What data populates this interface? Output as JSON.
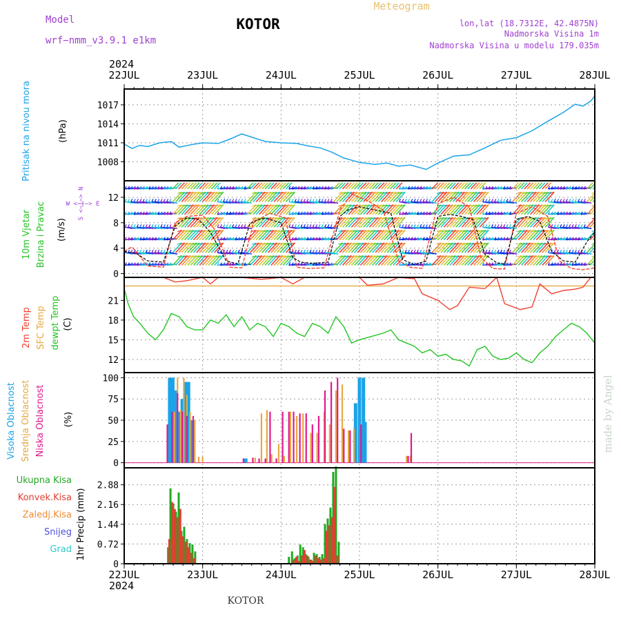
{
  "header": {
    "model_label": "Model",
    "model_name": "wrf−nmm_v3.9.1  e1km",
    "station": "KOTOR",
    "meteogram": "Meteogram",
    "lonlat": "lon,lat (18.7312E, 42.4875N)",
    "elevation": "Nadmorska Visina 1m",
    "model_elevation": "Nadmorska Visina u modelu 179.035m",
    "year_top": "2024",
    "year_bottom": "2024",
    "footer_station": "KOTOR",
    "watermark": "made by Angel"
  },
  "colors": {
    "pressure": "#1aa3e8",
    "temp2m": "#f04030",
    "sfc": "#e6a840",
    "dewpt": "#22c422",
    "high_cloud": "#1aa3e8",
    "mid_cloud": "#e6a840",
    "low_cloud": "#e0188c",
    "precip_total": "#22a822",
    "precip_conv": "#e04030",
    "precip_frozen": "#f08a30",
    "precip_snow": "#5050e0",
    "precip_hail": "#30c8c8",
    "wind_label": "#a040d0",
    "model_text": "#a040d0",
    "meteogram_text": "#e8c070"
  },
  "chart_data": [
    {
      "type": "line",
      "name": "pressure",
      "ylabel": "Pritisak na nivou mora",
      "unit": "(hPa)",
      "ylim": [
        1005,
        1019.5
      ],
      "yticks": [
        1008,
        1011,
        1014,
        1017
      ],
      "xlim": [
        0,
        6
      ],
      "x_tick_labels": [
        "22JUL",
        "23JUL",
        "24JUL",
        "25JUL",
        "26JUL",
        "27JUL",
        "28JUL"
      ],
      "grid": true,
      "series": [
        {
          "x": [
            0,
            0.1,
            0.2,
            0.3,
            0.45,
            0.6,
            0.7,
            0.85,
            1.0,
            1.2,
            1.35,
            1.5,
            1.65,
            1.8,
            2.0,
            2.2,
            2.35,
            2.5,
            2.65,
            2.8,
            3.0,
            3.2,
            3.35,
            3.5,
            3.65,
            3.85,
            4.0,
            4.2,
            4.4,
            4.6,
            4.8,
            5.0,
            5.2,
            5.4,
            5.6,
            5.75,
            5.85,
            5.95,
            6.0
          ],
          "y": [
            1010.8,
            1010.1,
            1010.6,
            1010.4,
            1011.0,
            1011.2,
            1010.3,
            1010.7,
            1011.0,
            1010.9,
            1011.6,
            1012.4,
            1011.8,
            1011.2,
            1011.0,
            1010.9,
            1010.5,
            1010.2,
            1009.5,
            1008.6,
            1007.9,
            1007.6,
            1007.8,
            1007.3,
            1007.5,
            1006.8,
            1007.8,
            1008.9,
            1009.1,
            1010.2,
            1011.4,
            1011.8,
            1012.9,
            1014.4,
            1015.8,
            1017.1,
            1016.8,
            1017.6,
            1018.4
          ]
        }
      ]
    },
    {
      "type": "line",
      "name": "wind",
      "title": "10m Vjetar",
      "ylabel": "Brzina i Pravac",
      "unit": "(m/s)",
      "compass": "W <−|−> E",
      "ylim": [
        -0.6,
        14.6
      ],
      "yticks": [
        0,
        4,
        8,
        12
      ],
      "xlim": [
        0,
        6
      ],
      "grid": true,
      "series": [
        {
          "name": "speed",
          "color": "#000000",
          "x": [
            0,
            0.15,
            0.3,
            0.5,
            0.65,
            0.8,
            0.95,
            1.1,
            1.3,
            1.45,
            1.6,
            1.7,
            1.8,
            2.0,
            2.15,
            2.25,
            2.4,
            2.6,
            2.75,
            2.85,
            3.0,
            3.2,
            3.4,
            3.55,
            3.7,
            3.85,
            4.0,
            4.15,
            4.3,
            4.45,
            4.6,
            4.75,
            4.85,
            5.0,
            5.15,
            5.3,
            5.45,
            5.6,
            5.75,
            5.9,
            6.0
          ],
          "y": [
            3.5,
            3.2,
            2.0,
            1.8,
            7.5,
            8.8,
            8.5,
            6.5,
            2.0,
            1.5,
            7.8,
            8.5,
            8.7,
            8.0,
            2.5,
            1.8,
            1.6,
            1.8,
            9.0,
            10.0,
            10.5,
            10.0,
            9.5,
            2.2,
            1.4,
            2.0,
            9.0,
            9.3,
            9.0,
            8.5,
            3.0,
            1.7,
            1.5,
            8.5,
            9.0,
            8.2,
            3.5,
            2.0,
            1.8,
            5.0,
            6.5
          ]
        },
        {
          "name": "gust",
          "color": "#f04030",
          "x": [
            0,
            0.1,
            0.3,
            0.5,
            0.65,
            0.8,
            1.0,
            1.15,
            1.35,
            1.5,
            1.65,
            1.85,
            2.05,
            2.2,
            2.35,
            2.55,
            2.75,
            2.9,
            3.1,
            3.3,
            3.5,
            3.65,
            3.8,
            4.0,
            4.2,
            4.4,
            4.55,
            4.7,
            4.85,
            5.0,
            5.2,
            5.4,
            5.55,
            5.7,
            5.85,
            6.0
          ],
          "y": [
            3.5,
            4.2,
            1.2,
            1.0,
            8.0,
            9.0,
            9.2,
            7.0,
            1.0,
            0.9,
            8.0,
            9.5,
            8.8,
            1.0,
            0.8,
            0.9,
            10.0,
            12.5,
            11.5,
            10.0,
            2.0,
            1.0,
            0.8,
            11.0,
            12.0,
            10.5,
            2.5,
            0.8,
            0.7,
            9.5,
            10.5,
            9.0,
            2.0,
            0.8,
            0.6,
            0.9
          ]
        }
      ]
    },
    {
      "type": "line",
      "name": "temperature",
      "ylabels": [
        "2m Temp",
        "SFC Temp",
        "dewpt Temp"
      ],
      "unit": "(C)",
      "ylim": [
        10,
        24.5
      ],
      "yticks": [
        12,
        15,
        18,
        21
      ],
      "xlim": [
        0,
        6
      ],
      "grid": true,
      "series": [
        {
          "name": "2m Temp",
          "x": [
            0.5,
            0.65,
            0.8,
            1.0,
            1.1,
            1.2,
            1.5,
            1.75,
            2.0,
            2.15,
            2.3,
            2.5,
            3.0,
            3.1,
            3.3,
            3.5,
            3.7,
            3.8,
            4.0,
            4.15,
            4.25,
            4.4,
            4.6,
            4.75,
            4.85,
            5.05,
            5.2,
            5.3,
            5.45,
            5.6,
            5.75,
            5.85,
            5.95
          ],
          "y": [
            24.5,
            23.8,
            24.0,
            24.5,
            23.5,
            24.5,
            24.5,
            24.2,
            24.5,
            23.5,
            24.5,
            24.5,
            24.5,
            23.3,
            23.5,
            24.5,
            24.3,
            22.0,
            21.0,
            19.6,
            20.2,
            23.0,
            22.8,
            24.5,
            20.5,
            19.6,
            20.0,
            23.5,
            22.0,
            22.5,
            22.7,
            23.0,
            24.5
          ]
        },
        {
          "name": "SFC Temp",
          "x": [
            0,
            6
          ],
          "y": [
            23.2,
            23.2
          ]
        },
        {
          "name": "dewpt Temp",
          "x": [
            0,
            0.05,
            0.12,
            0.2,
            0.3,
            0.4,
            0.5,
            0.6,
            0.7,
            0.8,
            0.9,
            1.0,
            1.1,
            1.2,
            1.3,
            1.4,
            1.5,
            1.6,
            1.7,
            1.8,
            1.9,
            2.0,
            2.1,
            2.2,
            2.3,
            2.4,
            2.5,
            2.6,
            2.7,
            2.8,
            2.9,
            3.0,
            3.15,
            3.3,
            3.4,
            3.5,
            3.6,
            3.7,
            3.8,
            3.9,
            4.0,
            4.1,
            4.2,
            4.3,
            4.4,
            4.5,
            4.6,
            4.7,
            4.8,
            4.9,
            5.0,
            5.1,
            5.2,
            5.3,
            5.4,
            5.5,
            5.6,
            5.7,
            5.8,
            5.9,
            6.0
          ],
          "y": [
            22.8,
            20.5,
            18.5,
            17.5,
            16.0,
            15.0,
            16.5,
            19.0,
            18.5,
            17.0,
            16.5,
            16.5,
            18.0,
            17.5,
            18.8,
            17.0,
            18.5,
            16.5,
            17.5,
            17.0,
            15.5,
            17.5,
            17.0,
            16.0,
            15.5,
            17.5,
            17.0,
            16.0,
            18.5,
            17.0,
            14.5,
            15.0,
            15.5,
            16.0,
            16.5,
            15.0,
            14.5,
            14.0,
            13.0,
            13.5,
            12.5,
            12.8,
            12.0,
            11.8,
            11.0,
            13.5,
            14.0,
            12.5,
            12.0,
            12.2,
            13.0,
            12.0,
            11.5,
            13.0,
            14.0,
            15.5,
            16.5,
            17.5,
            17.0,
            16.0,
            14.5
          ]
        }
      ]
    },
    {
      "type": "bar",
      "name": "cloud_cover",
      "ylabels": [
        "Visoka Oblacnost",
        "Srednja Oblacnost",
        "Niska Oblacnost"
      ],
      "unit": "(%)",
      "ylim": [
        -6,
        106
      ],
      "yticks": [
        0,
        25,
        50,
        75,
        100
      ],
      "xlim": [
        0,
        6
      ],
      "grid": true,
      "series": [
        {
          "name": "Visoka Oblacnost",
          "x": [
            0.58,
            0.6,
            0.62,
            0.66,
            0.7,
            0.74,
            0.78,
            0.82,
            0.86,
            1.55,
            2.95,
            3.0,
            3.05,
            3.07
          ],
          "y": [
            100,
            100,
            100,
            85,
            60,
            75,
            95,
            95,
            50,
            5,
            70,
            100,
            100,
            48
          ]
        },
        {
          "name": "Srednja Oblacnost",
          "x": [
            0.64,
            0.68,
            0.72,
            0.76,
            0.8,
            0.84,
            0.9,
            0.95,
            1.0,
            1.67,
            1.75,
            1.82,
            1.88,
            1.97,
            2.04,
            2.12,
            2.2,
            2.28,
            2.38,
            2.46,
            2.55,
            2.62,
            2.7,
            2.78,
            2.86,
            2.93,
            3.6,
            3.65
          ],
          "y": [
            60,
            100,
            62,
            100,
            80,
            60,
            50,
            7,
            7,
            6,
            58,
            62,
            10,
            22,
            8,
            60,
            55,
            58,
            35,
            35,
            60,
            45,
            85,
            92,
            38,
            40,
            8,
            8
          ]
        },
        {
          "name": "Niska Oblacnost",
          "x": [
            0.55,
            0.61,
            0.68,
            0.74,
            0.8,
            0.88,
            1.52,
            1.64,
            1.72,
            1.8,
            1.86,
            1.94,
            2.02,
            2.1,
            2.16,
            2.24,
            2.32,
            2.4,
            2.48,
            2.56,
            2.64,
            2.72,
            2.8,
            2.88,
            3.02,
            3.62,
            3.66
          ],
          "y": [
            45,
            60,
            82,
            60,
            55,
            55,
            5,
            6,
            5,
            5,
            60,
            5,
            60,
            60,
            60,
            58,
            58,
            45,
            55,
            85,
            95,
            100,
            40,
            38,
            45,
            8,
            35
          ]
        }
      ]
    },
    {
      "type": "bar",
      "name": "precipitation",
      "ylabel": "1hr Precip",
      "unit": "(mm)",
      "legend": [
        "Ukupna Kisa",
        "Konvek.Kisa",
        "Zaledj.Kisa",
        "Snijeg",
        "Grad"
      ],
      "ylim": [
        0,
        3.5
      ],
      "yticks": [
        0,
        0.72,
        1.44,
        2.16,
        2.88
      ],
      "xlim": [
        0,
        6
      ],
      "grid": true,
      "series": [
        {
          "name": "Ukupna Kisa",
          "x": [
            0.56,
            0.59,
            0.625,
            0.66,
            0.695,
            0.73,
            0.765,
            0.8,
            0.835,
            0.87,
            0.905,
            2.1,
            2.14,
            2.175,
            2.21,
            2.245,
            2.28,
            2.315,
            2.35,
            2.385,
            2.42,
            2.455,
            2.49,
            2.525,
            2.56,
            2.595,
            2.63,
            2.665,
            2.7,
            2.735
          ],
          "y": [
            0.6,
            2.75,
            2.2,
            1.9,
            2.6,
            1.2,
            1.35,
            0.9,
            0.75,
            0.7,
            0.45,
            0.25,
            0.45,
            0.2,
            0.3,
            0.7,
            0.6,
            0.35,
            0.25,
            0.15,
            0.4,
            0.35,
            0.25,
            0.35,
            1.45,
            1.65,
            2.05,
            3.35,
            3.55,
            0.8
          ]
        },
        {
          "name": "Konvek.Kisa",
          "x": [
            0.575,
            0.61,
            0.645,
            0.68,
            0.715,
            0.75,
            0.785,
            0.82,
            0.855,
            0.89,
            2.16,
            2.195,
            2.23,
            2.265,
            2.3,
            2.335,
            2.37,
            2.405,
            2.44,
            2.475,
            2.51,
            2.545,
            2.58,
            2.615,
            2.65,
            2.685,
            2.72
          ],
          "y": [
            0.9,
            2.25,
            2.0,
            1.7,
            2.0,
            1.0,
            0.8,
            0.6,
            0.4,
            0.2,
            0.15,
            0.25,
            0.1,
            0.3,
            0.5,
            0.3,
            0.15,
            0.1,
            0.3,
            0.2,
            0.15,
            0.2,
            1.2,
            1.4,
            1.7,
            2.8,
            0.3
          ]
        }
      ]
    }
  ]
}
